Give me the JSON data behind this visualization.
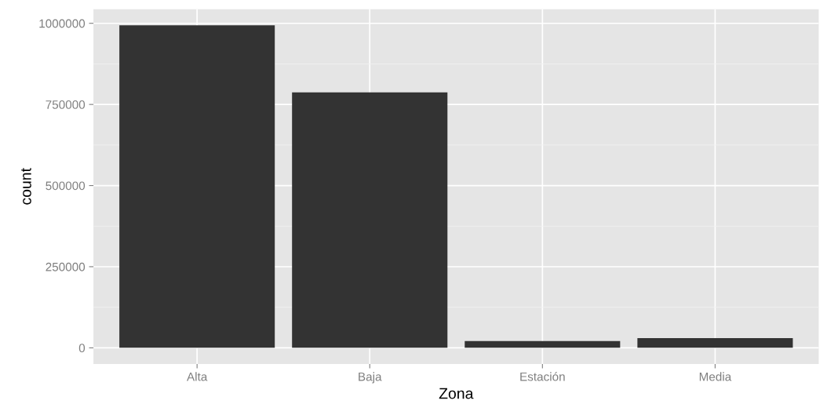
{
  "chart_data": {
    "type": "bar",
    "xlabel": "Zona",
    "ylabel": "count",
    "categories": [
      "Alta",
      "Baja",
      "Estación",
      "Media"
    ],
    "values": [
      994000,
      787000,
      21000,
      30000
    ],
    "color": "#333333",
    "ylim": [
      -49700,
      1043700
    ],
    "yticks": [
      0,
      250000,
      500000,
      750000,
      1000000
    ],
    "grid": true
  }
}
